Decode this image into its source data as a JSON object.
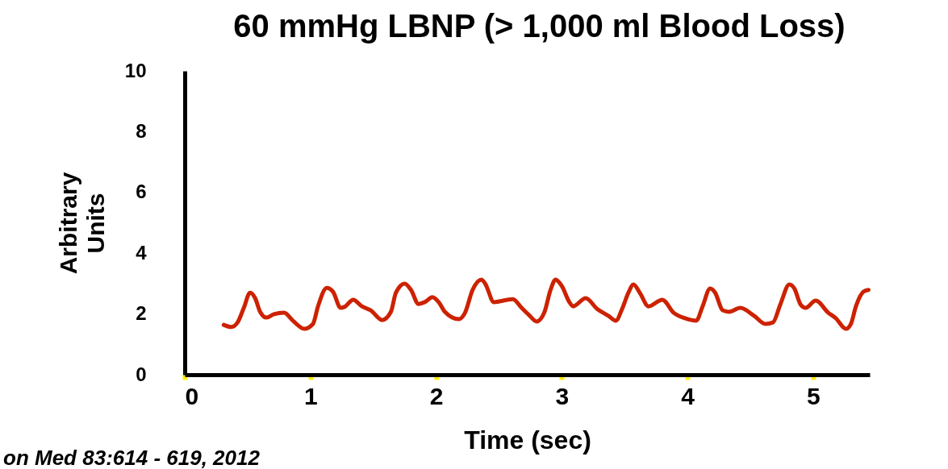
{
  "chart_data": {
    "type": "line",
    "title": "60 mmHg LBNP (> 1,000 ml Blood Loss)",
    "xlabel": "Time (sec)",
    "ylabel": "Arbitrary Units",
    "x": [
      0.31,
      0.37,
      0.42,
      0.47,
      0.52,
      0.56,
      0.6,
      0.65,
      0.71,
      0.79,
      0.86,
      0.95,
      1.02,
      1.06,
      1.13,
      1.18,
      1.24,
      1.27,
      1.34,
      1.41,
      1.48,
      1.57,
      1.64,
      1.68,
      1.75,
      1.8,
      1.86,
      1.91,
      1.97,
      2.02,
      2.07,
      2.18,
      2.23,
      2.29,
      2.36,
      2.39,
      2.46,
      2.61,
      2.68,
      2.74,
      2.8,
      2.86,
      2.91,
      2.95,
      3.0,
      3.06,
      3.09,
      3.19,
      3.28,
      3.37,
      3.43,
      3.48,
      3.53,
      3.57,
      3.62,
      3.69,
      3.8,
      3.89,
      3.98,
      4.07,
      4.12,
      4.18,
      4.22,
      4.28,
      4.33,
      4.42,
      4.53,
      4.62,
      4.68,
      4.74,
      4.81,
      4.85,
      4.9,
      4.94,
      5.02,
      5.12,
      5.18,
      5.26,
      5.3,
      5.34,
      5.4,
      5.44
    ],
    "series": [
      {
        "color": "#cc2200",
        "values": [
          1.64,
          1.57,
          1.72,
          2.2,
          2.7,
          2.52,
          2.07,
          1.88,
          1.99,
          2.04,
          1.78,
          1.51,
          1.67,
          2.25,
          2.86,
          2.73,
          2.2,
          2.23,
          2.47,
          2.25,
          2.12,
          1.8,
          2.07,
          2.7,
          3.0,
          2.79,
          2.33,
          2.39,
          2.55,
          2.39,
          2.07,
          1.83,
          2.04,
          2.79,
          3.13,
          3.0,
          2.39,
          2.49,
          2.2,
          1.96,
          1.75,
          2.04,
          2.79,
          3.13,
          2.92,
          2.39,
          2.25,
          2.52,
          2.17,
          1.94,
          1.78,
          2.17,
          2.7,
          2.97,
          2.7,
          2.25,
          2.47,
          2.04,
          1.86,
          1.78,
          2.25,
          2.84,
          2.7,
          2.12,
          2.07,
          2.2,
          1.94,
          1.67,
          1.72,
          2.33,
          2.97,
          2.84,
          2.31,
          2.2,
          2.44,
          2.04,
          1.86,
          1.51,
          1.67,
          2.25,
          2.73,
          2.79
        ]
      }
    ],
    "xlim": [
      0,
      5.45
    ],
    "xticks": [
      0,
      1,
      2,
      3,
      4,
      5
    ],
    "ylim": [
      0,
      10
    ],
    "yticks": [
      0,
      2,
      4,
      6,
      8,
      10
    ],
    "grid": false,
    "marker": "none",
    "line_style": "solid",
    "annotations": [
      "on Med 83:614 - 619, 2012"
    ]
  }
}
